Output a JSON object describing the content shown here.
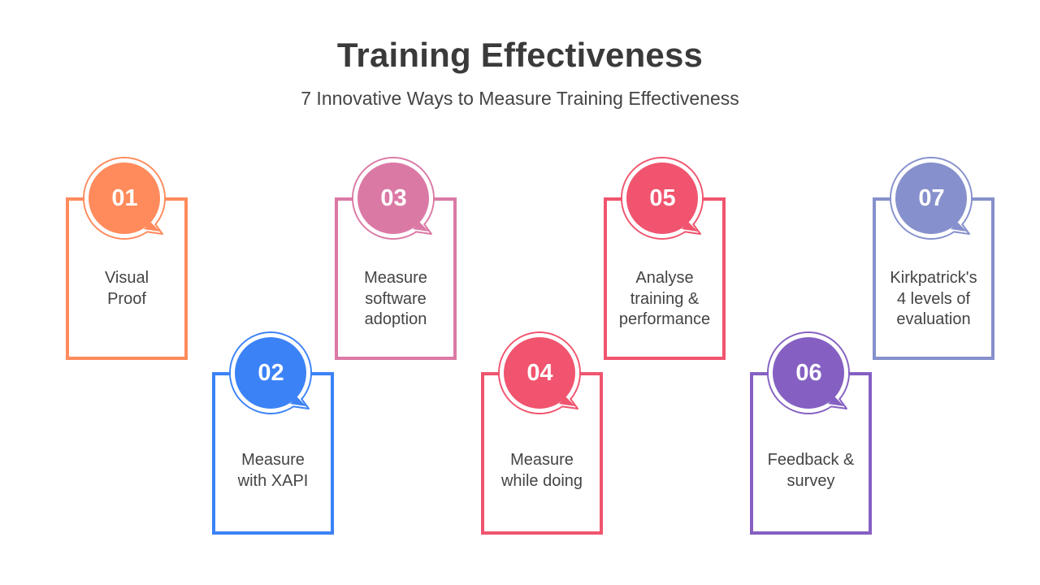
{
  "header": {
    "title": "Training Effectiveness",
    "subtitle": "7 Innovative Ways to Measure Training Effectiveness"
  },
  "steps": [
    {
      "number": "01",
      "label": "Visual\nProof",
      "color": "#FF8A5C",
      "position": "top"
    },
    {
      "number": "02",
      "label": "Measure\nwith XAPI",
      "color": "#3B82F6",
      "position": "bottom"
    },
    {
      "number": "03",
      "label": "Measure\nsoftware\nadoption",
      "color": "#DB79A5",
      "position": "top"
    },
    {
      "number": "04",
      "label": "Measure\nwhile doing",
      "color": "#F0546E",
      "position": "bottom"
    },
    {
      "number": "05",
      "label": "Analyse\ntraining &\nperformance",
      "color": "#F0546E",
      "position": "top"
    },
    {
      "number": "06",
      "label": "Feedback &\nsurvey",
      "color": "#8560C2",
      "position": "bottom"
    },
    {
      "number": "07",
      "label": "Kirkpatrick's\n4 levels of\nevaluation",
      "color": "#8690CC",
      "position": "top"
    }
  ]
}
